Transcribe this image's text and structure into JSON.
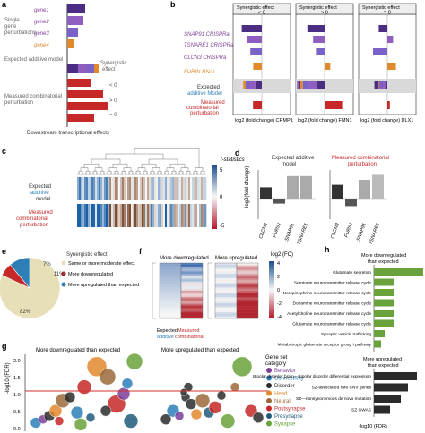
{
  "panel_a": {
    "letter": "a",
    "single_label": [
      "Single",
      "gene",
      "perturbations"
    ],
    "genes": [
      "gene1",
      "gene2",
      "gene3",
      "gene4"
    ],
    "additive_label": "Expected additive model",
    "synergy_label": [
      "Synergistic",
      "effect"
    ],
    "combo_label": [
      "Measured combinatorial",
      "perturbation"
    ],
    "thresholds": [
      "< 0",
      "> 0",
      "= 0"
    ],
    "xlabel": "Downstream transcriptional effects"
  },
  "panel_b": {
    "letter": "b",
    "headers": [
      "Synergistic effect",
      "Synergistic effect",
      "Synergistic effect"
    ],
    "header_signs": [
      "< 0",
      "> 0",
      "= 0"
    ],
    "row_labels": [
      "SNAP91 CRISPRa",
      "TSNARE1 CRISPRa",
      "CLCN3 CRISPRa",
      "FURIN RNAi",
      "Expected",
      "additive Model",
      "Measured",
      "combinatorial",
      "perturbation"
    ],
    "xlabels": [
      "log2 (fold change) CRMP1",
      "log2 (fold change) FMN1",
      "log2 (fold change) DLX1"
    ]
  },
  "panel_c": {
    "letter": "c",
    "row_labels": [
      "Expected",
      "additive",
      "model",
      "Measured",
      "combinatorial",
      "perturbation"
    ],
    "legend_title": "t-statistics",
    "legend_ticks": [
      "5",
      "0",
      "-5"
    ]
  },
  "panel_d": {
    "letter": "d",
    "title_left": [
      "Expected additive",
      "model"
    ],
    "title_right": [
      "Measured combinatorial",
      "perturbation"
    ],
    "ylabel": "log2(fold change)",
    "categories": [
      "CLCN3",
      "FURIN",
      "SNAP91",
      "TSNARE1"
    ]
  },
  "panel_e": {
    "letter": "e",
    "legend_title": "Synergistic effect",
    "legend": [
      "Same or more moderate effect",
      "More downregulated",
      "More upregulated than expected"
    ],
    "pct_labels": [
      "82%",
      "7%",
      "11%"
    ]
  },
  "panel_f": {
    "letter": "f",
    "titles": [
      "More downregulated",
      "More upregulated"
    ],
    "legend_title": "log2 (FC)",
    "legend_ticks": [
      "4",
      "2",
      "0",
      "-2",
      "-4"
    ],
    "xlabels": [
      "Expected",
      "additive",
      "Measured",
      "combinatorial"
    ]
  },
  "panel_g": {
    "letter": "g",
    "titles": [
      "More downregulated than expected",
      "More upregulated than expected"
    ],
    "ylabel": "-log10 (FDR)",
    "yticks": [
      "2.0",
      "1.5",
      "1.0",
      "0.5",
      "0.0"
    ],
    "legend_title": [
      "Gene set",
      "category"
    ],
    "categories": [
      "Behavior",
      "Connectivity",
      "Disorder",
      "Head",
      "Neural",
      "Postsynapse",
      "Presynapse",
      "Synapse"
    ],
    "category_colors": [
      "#7e3f98",
      "#2d7fb8",
      "#2b2b2b",
      "#e08a2c",
      "#9a6a3a",
      "#c62828",
      "#1e5a7a",
      "#6aa33b"
    ]
  },
  "panel_h": {
    "letter": "h",
    "title_down": [
      "More downregulated",
      "than expected"
    ],
    "terms_down": [
      "Glutamate secretion",
      "Serotonin neurotransmitter release cycle",
      "Norepinephrine neurotransmitter release cycle",
      "Dopamine neurotransmitter release cycle",
      "Acetylcholine neurotransmitter release cycle",
      "Glutamate neurotransmitter release cycle",
      "Synaptic vesicle trafficking",
      "Metabotropic glutamate receptor group I pathway"
    ],
    "title_up": [
      "More upregulated",
      "than expected"
    ],
    "terms_up": [
      "Bipolar disorder brain—Bipolar disorder differential expression",
      "SZ-associated rare CNV genes",
      "SZ—nonsynonymous de novo mutation",
      "SZ GWAS"
    ],
    "xlabel": "-log10 (FDR)"
  }
}
